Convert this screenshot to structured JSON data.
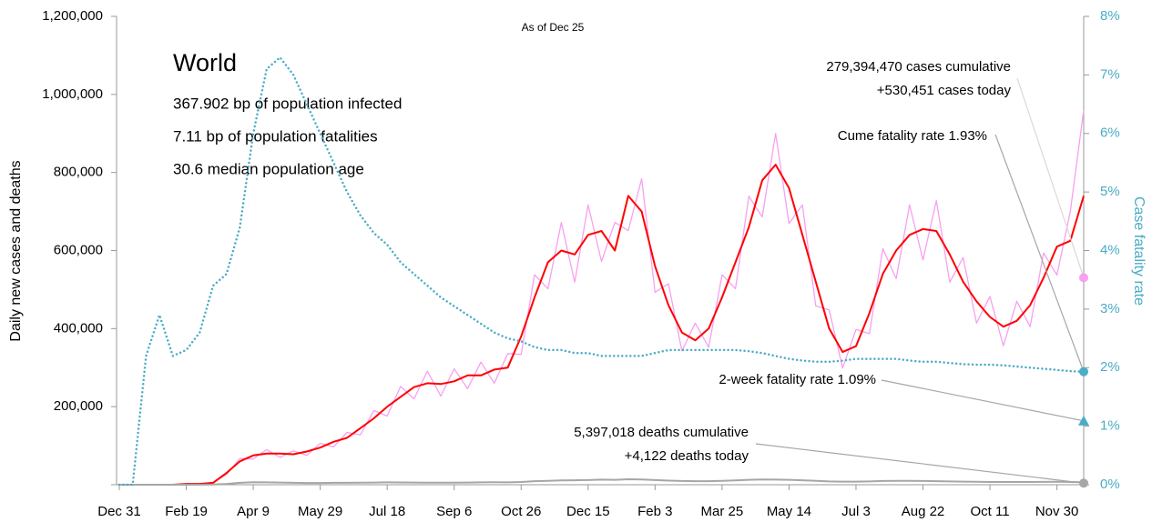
{
  "chart_data": {
    "type": "line",
    "subtitle": "As of Dec 25",
    "info": {
      "title": "World",
      "lines": [
        "367.902 bp of population infected",
        "7.11 bp of population fatalities",
        "30.6 median population age"
      ]
    },
    "y_label": "Daily new cases and deaths",
    "y2_label": "Case fatality rate",
    "x": [
      0,
      10,
      20,
      30,
      40,
      50,
      60,
      70,
      80,
      90,
      100,
      110,
      120,
      130,
      140,
      150,
      160,
      170,
      180,
      190,
      200,
      210,
      220,
      230,
      240,
      250,
      260,
      270,
      280,
      290,
      300,
      310,
      320,
      330,
      340,
      350,
      360,
      370,
      380,
      390,
      400,
      410,
      420,
      430,
      440,
      450,
      460,
      470,
      480,
      490,
      500,
      510,
      520,
      530,
      540,
      550,
      560,
      570,
      580,
      590,
      600,
      610,
      620,
      630,
      640,
      650,
      660,
      670,
      680,
      690,
      700,
      710,
      720
    ],
    "xlim": [
      0,
      720
    ],
    "xticks": [
      {
        "value": 0,
        "label": "Dec 31"
      },
      {
        "value": 50,
        "label": "Feb 19"
      },
      {
        "value": 100,
        "label": "Apr 9"
      },
      {
        "value": 150,
        "label": "May 29"
      },
      {
        "value": 200,
        "label": "Jul 18"
      },
      {
        "value": 250,
        "label": "Sep 6"
      },
      {
        "value": 300,
        "label": "Oct 26"
      },
      {
        "value": 350,
        "label": "Dec 15"
      },
      {
        "value": 400,
        "label": "Feb 3"
      },
      {
        "value": 450,
        "label": "Mar 25"
      },
      {
        "value": 500,
        "label": "May 14"
      },
      {
        "value": 550,
        "label": "Jul 3"
      },
      {
        "value": 600,
        "label": "Aug 22"
      },
      {
        "value": 650,
        "label": "Oct 11"
      },
      {
        "value": 700,
        "label": "Nov 30"
      }
    ],
    "ylim": [
      0,
      1200000
    ],
    "yticks": [
      {
        "value": 0,
        "label": ""
      },
      {
        "value": 200000,
        "label": "200,000"
      },
      {
        "value": 400000,
        "label": "400,000"
      },
      {
        "value": 600000,
        "label": "600,000"
      },
      {
        "value": 800000,
        "label": "800,000"
      },
      {
        "value": 1000000,
        "label": "1,000,000"
      },
      {
        "value": 1200000,
        "label": "1,200,000"
      }
    ],
    "y2lim": [
      0,
      8
    ],
    "y2ticks": [
      {
        "value": 0,
        "label": "0%"
      },
      {
        "value": 1,
        "label": "1%"
      },
      {
        "value": 2,
        "label": "2%"
      },
      {
        "value": 3,
        "label": "3%"
      },
      {
        "value": 4,
        "label": "4%"
      },
      {
        "value": 5,
        "label": "5%"
      },
      {
        "value": 6,
        "label": "6%"
      },
      {
        "value": 7,
        "label": "7%"
      },
      {
        "value": 8,
        "label": "8%"
      }
    ],
    "y2_color": "#4bacc6",
    "series": [
      {
        "color": "#f7a0f0",
        "width": 1.3,
        "line_style": "solid",
        "values": [
          0,
          0,
          0,
          0,
          0,
          2200,
          1800,
          5600,
          26000,
          67000,
          66000,
          90000,
          70000,
          87000,
          75000,
          106000,
          97000,
          134000,
          128000,
          190000,
          176000,
          252000,
          220000,
          291000,
          227000,
          297000,
          246000,
          314000,
          260000,
          336000,
          334000,
          538000,
          502000,
          672000,
          519000,
          717000,
          572000,
          672000,
          651000,
          784000,
          493000,
          515000,
          343000,
          414000,
          352000,
          538000,
          502000,
          739000,
          686000,
          900000,
          669000,
          717000,
          458000,
          448000,
          299000,
          398000,
          387000,
          605000,
          528000,
          717000,
          576000,
          728000,
          519000,
          582000,
          414000,
          482000,
          356000,
          470000,
          405000,
          594000,
          537000,
          700000,
          960000
        ]
      },
      {
        "color": "#ff0000",
        "width": 2,
        "line_style": "solid",
        "values": [
          0,
          0,
          0,
          0,
          0,
          2000,
          2000,
          5000,
          30000,
          60000,
          75000,
          80000,
          80000,
          78000,
          85000,
          95000,
          110000,
          120000,
          145000,
          170000,
          200000,
          225000,
          250000,
          260000,
          258000,
          265000,
          280000,
          280000,
          295000,
          300000,
          380000,
          480000,
          570000,
          600000,
          590000,
          640000,
          650000,
          600000,
          740000,
          700000,
          560000,
          460000,
          390000,
          370000,
          400000,
          480000,
          570000,
          660000,
          780000,
          820000,
          760000,
          640000,
          520000,
          400000,
          340000,
          355000,
          440000,
          540000,
          600000,
          640000,
          655000,
          650000,
          590000,
          520000,
          470000,
          430000,
          405000,
          420000,
          460000,
          530000,
          610000,
          625000,
          740000
        ]
      },
      {
        "color": "#a6a6a6",
        "width": 2,
        "line_style": "solid",
        "values": [
          0,
          0,
          0,
          0,
          0,
          0,
          0,
          500,
          2000,
          5000,
          6500,
          6000,
          5500,
          5000,
          4500,
          4500,
          4800,
          5000,
          5200,
          5500,
          6000,
          5800,
          5500,
          5400,
          5300,
          5200,
          5600,
          6000,
          6200,
          6000,
          7000,
          9000,
          10000,
          11000,
          11500,
          12000,
          13000,
          12500,
          14000,
          13500,
          12000,
          10500,
          9500,
          9000,
          9000,
          10000,
          11000,
          12500,
          13500,
          13000,
          12500,
          11500,
          10000,
          8500,
          8000,
          8000,
          8500,
          9500,
          10000,
          10000,
          9500,
          9000,
          8500,
          8000,
          7500,
          7000,
          7000,
          7000,
          7000,
          7200,
          7500,
          7000,
          6500
        ]
      },
      {
        "color": "#4bacc6",
        "width": 2.5,
        "line_style": "dotted",
        "axis": "y2",
        "values": [
          0,
          0,
          2.2,
          2.9,
          2.2,
          2.3,
          2.6,
          3.4,
          3.6,
          4.4,
          6.0,
          7.1,
          7.3,
          7.0,
          6.5,
          6.0,
          5.5,
          5.0,
          4.6,
          4.3,
          4.1,
          3.8,
          3.6,
          3.4,
          3.2,
          3.05,
          2.9,
          2.75,
          2.6,
          2.5,
          2.45,
          2.35,
          2.3,
          2.3,
          2.25,
          2.25,
          2.2,
          2.2,
          2.2,
          2.2,
          2.25,
          2.3,
          2.3,
          2.3,
          2.3,
          2.3,
          2.3,
          2.28,
          2.25,
          2.2,
          2.15,
          2.12,
          2.1,
          2.1,
          2.12,
          2.15,
          2.15,
          2.15,
          2.15,
          2.12,
          2.1,
          2.1,
          2.08,
          2.06,
          2.05,
          2.05,
          2.04,
          2.02,
          2.0,
          1.98,
          1.96,
          1.94,
          1.93
        ]
      }
    ],
    "annotations": [
      {
        "text": [
          "279,394,470 cases cumulative",
          "+530,451 cases today"
        ],
        "value": 530451,
        "marker": "circle",
        "color": "#f7a0f0",
        "line_color": "#d9d9d9"
      },
      {
        "text": [
          "Cume fatality rate 1.93%"
        ],
        "value": 1.93,
        "axis": "y2",
        "marker": "circle",
        "color": "#4bacc6",
        "line_color": "#a6a6a6"
      },
      {
        "text": [
          "2-week fatality rate 1.09%"
        ],
        "value": 1.09,
        "axis": "y2",
        "marker": "triangle",
        "color": "#4bacc6",
        "line_color": "#a6a6a6"
      },
      {
        "text": [
          "5,397,018 deaths cumulative",
          "+4,122 deaths today"
        ],
        "value": 4122,
        "marker": "circle",
        "color": "#a6a6a6",
        "line_color": "#a6a6a6"
      }
    ]
  }
}
